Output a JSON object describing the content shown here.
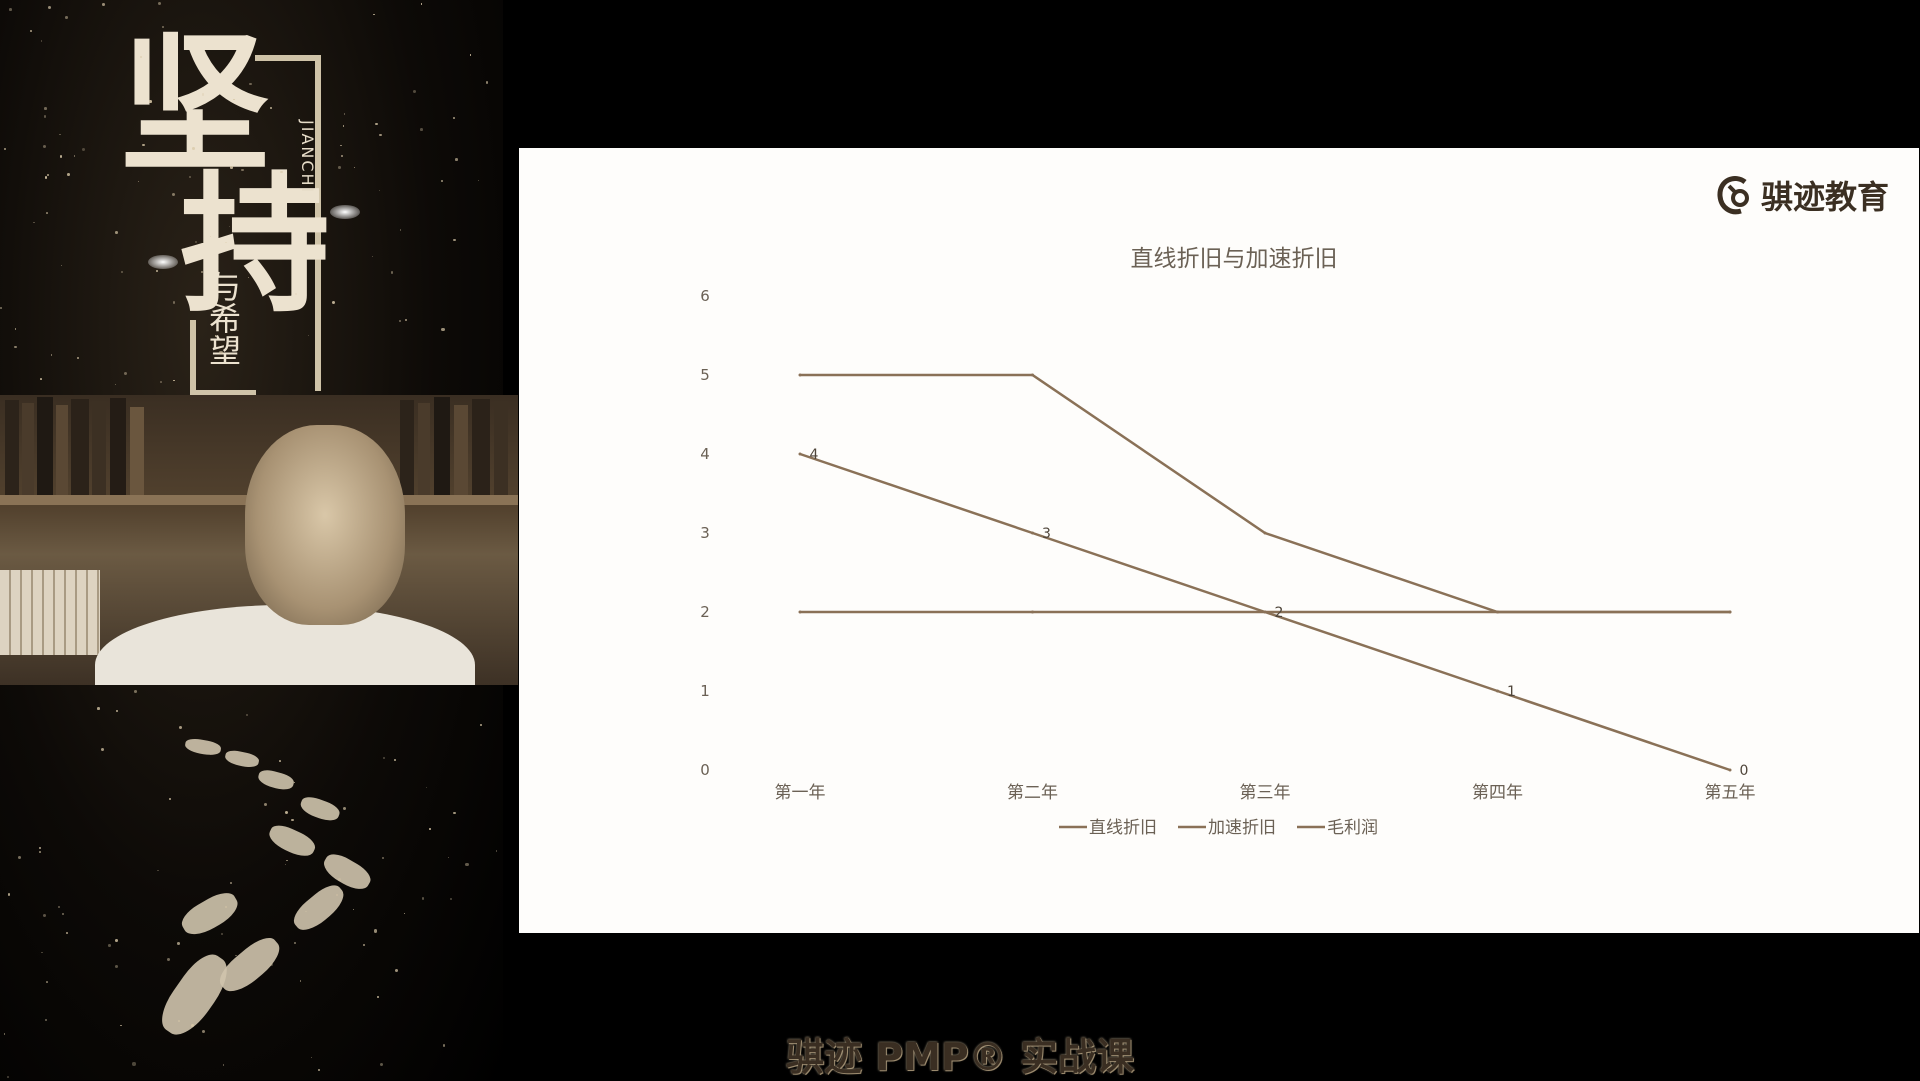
{
  "poster": {
    "title_char1": "坚",
    "title_char2": "持",
    "pinyin": "JIANCHI",
    "subtitle": "与希望"
  },
  "slide": {
    "brand_name": "骐迹教育",
    "brand_icon": "brand-logo-icon"
  },
  "caption": "骐迹 PMP® 实战课",
  "colors": {
    "line": "#8a7157",
    "slide_bg": "#fefdfb",
    "text": "#6b6155"
  },
  "chart_data": {
    "type": "line",
    "title": "直线折旧与加速折旧",
    "categories": [
      "第一年",
      "第二年",
      "第三年",
      "第四年",
      "第五年"
    ],
    "ylim": [
      0,
      6
    ],
    "yticks": [
      "0",
      "1",
      "2",
      "3",
      "4",
      "5",
      "6"
    ],
    "grid": false,
    "legend_position": "bottom",
    "series": [
      {
        "name": "直线折旧",
        "values": [
          2,
          2,
          2,
          2,
          2
        ],
        "labels": []
      },
      {
        "name": "加速折旧",
        "values": [
          4,
          3,
          2,
          1,
          0
        ],
        "labels": [
          "4",
          "3",
          "2",
          "1",
          "0"
        ]
      },
      {
        "name": "毛利润",
        "values": [
          5,
          5,
          3,
          2,
          2
        ],
        "labels": []
      }
    ]
  }
}
